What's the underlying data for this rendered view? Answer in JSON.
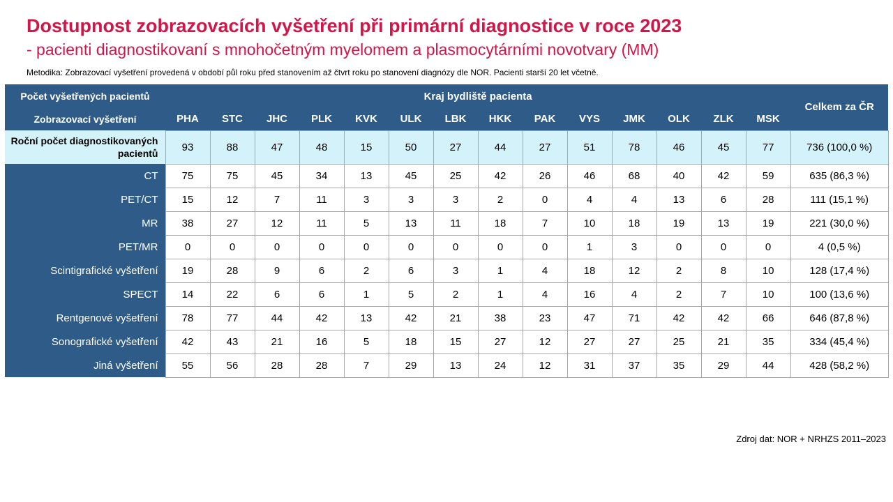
{
  "title": "Dostupnost zobrazovacích vyšetření při primární diagnostice v roce 2023",
  "subtitle": "- pacienti diagnostikovaní s mnohočetným myelomem a plasmocytárními novotvary (MM)",
  "methodology": "Metodika: Zobrazovací vyšetření provedená v období půl roku před stanovením až čtvrt roku po stanovení diagnózy dle NOR. Pacienti starší 20 let včetně.",
  "table": {
    "corner_top": "Počet vyšetřených pacientů",
    "corner_bottom": "Zobrazovací vyšetření",
    "region_header": "Kraj bydliště pacienta",
    "total_header": "Celkem za ČR",
    "columns": [
      "PHA",
      "STC",
      "JHC",
      "PLK",
      "KVK",
      "ULK",
      "LBK",
      "HKK",
      "PAK",
      "VYS",
      "JMK",
      "OLK",
      "ZLK",
      "MSK"
    ],
    "rows": [
      {
        "label": "Roční počet diagnostikovaných pacientů",
        "values": [
          "93",
          "88",
          "47",
          "48",
          "15",
          "50",
          "27",
          "44",
          "27",
          "51",
          "78",
          "46",
          "45",
          "77"
        ],
        "total": "736 (100,0 %)"
      },
      {
        "label": "CT",
        "values": [
          "75",
          "75",
          "45",
          "34",
          "13",
          "45",
          "25",
          "42",
          "26",
          "46",
          "68",
          "40",
          "42",
          "59"
        ],
        "total": "635 (86,3 %)"
      },
      {
        "label": "PET/CT",
        "values": [
          "15",
          "12",
          "7",
          "11",
          "3",
          "3",
          "3",
          "2",
          "0",
          "4",
          "4",
          "13",
          "6",
          "28"
        ],
        "total": "111 (15,1 %)"
      },
      {
        "label": "MR",
        "values": [
          "38",
          "27",
          "12",
          "11",
          "5",
          "13",
          "11",
          "18",
          "7",
          "10",
          "18",
          "19",
          "13",
          "19"
        ],
        "total": "221 (30,0 %)"
      },
      {
        "label": "PET/MR",
        "values": [
          "0",
          "0",
          "0",
          "0",
          "0",
          "0",
          "0",
          "0",
          "0",
          "1",
          "3",
          "0",
          "0",
          "0"
        ],
        "total": "4 (0,5 %)"
      },
      {
        "label": "Scintigrafické vyšetření",
        "values": [
          "19",
          "28",
          "9",
          "6",
          "2",
          "6",
          "3",
          "1",
          "4",
          "18",
          "12",
          "2",
          "8",
          "10"
        ],
        "total": "128 (17,4 %)"
      },
      {
        "label": "SPECT",
        "values": [
          "14",
          "22",
          "6",
          "6",
          "1",
          "5",
          "2",
          "1",
          "4",
          "16",
          "4",
          "2",
          "7",
          "10"
        ],
        "total": "100 (13,6 %)"
      },
      {
        "label": "Rentgenové vyšetření",
        "values": [
          "78",
          "77",
          "44",
          "42",
          "13",
          "42",
          "21",
          "38",
          "23",
          "47",
          "71",
          "42",
          "42",
          "66"
        ],
        "total": "646 (87,8 %)"
      },
      {
        "label": "Sonografické vyšetření",
        "values": [
          "42",
          "43",
          "21",
          "16",
          "5",
          "18",
          "15",
          "27",
          "12",
          "27",
          "27",
          "25",
          "21",
          "35"
        ],
        "total": "334 (45,4 %)"
      },
      {
        "label": "Jiná vyšetření",
        "values": [
          "55",
          "56",
          "28",
          "28",
          "7",
          "29",
          "13",
          "24",
          "12",
          "31",
          "37",
          "35",
          "29",
          "44"
        ],
        "total": "428 (58,2 %)"
      }
    ]
  },
  "source": "Zdroj dat: NOR + NRHZS 2011–2023",
  "colors": {
    "title": "#d0174a",
    "header_bg": "#2e5b87",
    "highlight_row": "#d3f2f9"
  }
}
